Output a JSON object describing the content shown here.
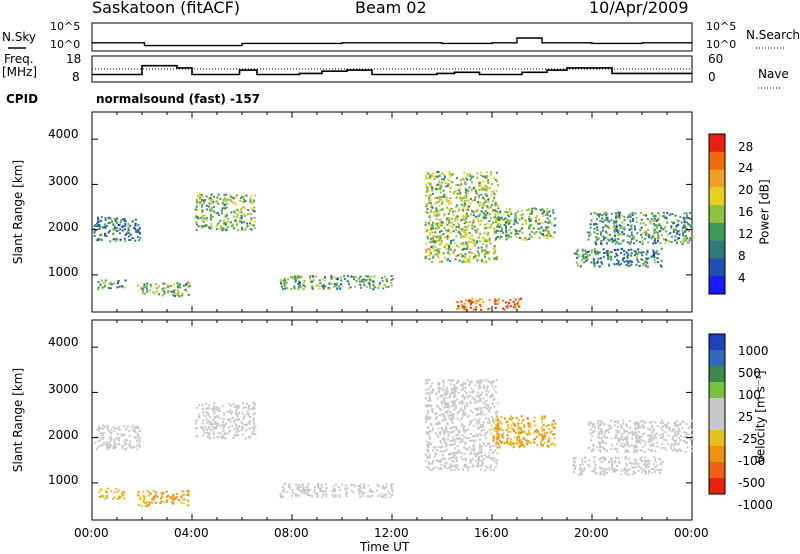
{
  "header": {
    "title": "Saskatoon (fitACF)",
    "beam": "Beam 02",
    "date": "10/Apr/2009"
  },
  "strip_panels": {
    "nsky_label": "N.Sky",
    "nsky_ticks": [
      "10^5",
      "10^0"
    ],
    "nsearch_label": "N.Search",
    "nsearch_ticks": [
      "10^5",
      "10^0"
    ],
    "freq_label_line1": "Freq.",
    "freq_label_line2": "[MHz]",
    "freq_ticks": [
      "18",
      "8"
    ],
    "nave_label": "Nave",
    "nave_ticks": [
      "60",
      "0"
    ],
    "cpid_label": "CPID",
    "cpid_value": "normalsound (fast) -157"
  },
  "axes": {
    "ylabel": "Slant Range [km]",
    "yticks": [
      "4000",
      "3000",
      "2000",
      "1000"
    ],
    "xlabel": "Time UT",
    "xticks": [
      "00:00",
      "04:00",
      "08:00",
      "12:00",
      "16:00",
      "20:00",
      "00:00"
    ]
  },
  "colorbars": {
    "power": {
      "label": "Power [dB]",
      "ticks": [
        "28",
        "24",
        "20",
        "16",
        "12",
        "8",
        "4"
      ],
      "colors": [
        "#1a1aff",
        "#1f4fb0",
        "#2f7a78",
        "#3f9a5a",
        "#8fc23a",
        "#e8d020",
        "#f0a020",
        "#f26a10",
        "#e62010"
      ]
    },
    "velocity": {
      "label": "Velocity [m s⁻¹]",
      "ticks": [
        "1000",
        "500",
        "100",
        "25",
        "-25",
        "-100",
        "-500",
        "-1000"
      ],
      "colors": [
        "#2040c0",
        "#306ab8",
        "#3a8a50",
        "#78c040",
        "#c8c8c8",
        "#c8c8c8",
        "#e8c020",
        "#f09010",
        "#f06010",
        "#e82010"
      ]
    }
  },
  "chart_data": [
    {
      "type": "line",
      "title": "N.Sky",
      "x_units": "hours UT",
      "xlim": [
        0,
        24
      ],
      "y_scale": "log",
      "ylim": [
        1,
        100000
      ],
      "x": [
        0,
        2,
        2.1,
        6,
        10,
        14,
        16,
        17,
        18,
        20,
        22,
        24
      ],
      "y": [
        20,
        20,
        5,
        15,
        20,
        15,
        20,
        200,
        20,
        15,
        20,
        20
      ]
    },
    {
      "type": "line",
      "title": "Freq. [MHz]",
      "x_units": "hours UT",
      "xlim": [
        0,
        24
      ],
      "ylim": [
        8,
        18
      ],
      "x": [
        0,
        1,
        1.9,
        2,
        2.7,
        3.4,
        4.0,
        5.7,
        5.9,
        6.6,
        7.5,
        8.3,
        9.2,
        10.2,
        11.2,
        12.2,
        13.0,
        13.8,
        14.5,
        15.5,
        16.0,
        17.2,
        18.2,
        19.0,
        20.8,
        22.0,
        23.0,
        24
      ],
      "y": [
        10.5,
        10.5,
        10.5,
        14.5,
        14.5,
        13.5,
        10.5,
        10.5,
        12.5,
        10.5,
        10.5,
        11,
        12,
        12.5,
        10.5,
        10.5,
        10.5,
        11,
        11.5,
        10.5,
        10.5,
        11.5,
        12.5,
        13.5,
        11,
        11,
        11,
        11
      ]
    },
    {
      "type": "heatmap",
      "title": "Power [dB]",
      "x_units": "hours UT",
      "xlim": [
        0,
        24
      ],
      "y_units": "Slant Range [km]",
      "ylim": [
        180,
        4600
      ],
      "z_range": [
        0,
        30
      ],
      "regions": [
        {
          "t0": 0.05,
          "t1": 1.9,
          "r0": 1750,
          "r1": 2300,
          "power": 9
        },
        {
          "t0": 0.2,
          "t1": 1.3,
          "r0": 700,
          "r1": 900,
          "power": 12
        },
        {
          "t0": 1.8,
          "t1": 3.9,
          "r0": 550,
          "r1": 850,
          "power": 13
        },
        {
          "t0": 4.1,
          "t1": 6.5,
          "r0": 2000,
          "r1": 2800,
          "power": 14
        },
        {
          "t0": 7.5,
          "t1": 12.0,
          "r0": 700,
          "r1": 1000,
          "power": 12
        },
        {
          "t0": 13.3,
          "t1": 16.2,
          "r0": 1300,
          "r1": 3300,
          "power": 15
        },
        {
          "t0": 16.0,
          "t1": 18.5,
          "r0": 1800,
          "r1": 2500,
          "power": 13
        },
        {
          "t0": 14.5,
          "t1": 17.2,
          "r0": 250,
          "r1": 500,
          "power": 25
        },
        {
          "t0": 19.2,
          "t1": 22.8,
          "r0": 1200,
          "r1": 1600,
          "power": 9
        },
        {
          "t0": 19.8,
          "t1": 24.0,
          "r0": 1700,
          "r1": 2400,
          "power": 11
        }
      ]
    },
    {
      "type": "heatmap",
      "title": "Velocity [m s-1]",
      "x_units": "hours UT",
      "xlim": [
        0,
        24
      ],
      "y_units": "Slant Range [km]",
      "ylim": [
        180,
        4600
      ],
      "z_range": [
        -1000,
        1000
      ],
      "regions": [
        {
          "t0": 0.05,
          "t1": 1.9,
          "r0": 1750,
          "r1": 2300,
          "velocity": 0
        },
        {
          "t0": 0.2,
          "t1": 1.3,
          "r0": 650,
          "r1": 900,
          "velocity": -300
        },
        {
          "t0": 1.8,
          "t1": 3.9,
          "r0": 500,
          "r1": 850,
          "velocity": -400
        },
        {
          "t0": 4.1,
          "t1": 6.5,
          "r0": 2000,
          "r1": 2800,
          "velocity": 0
        },
        {
          "t0": 7.5,
          "t1": 12.0,
          "r0": 700,
          "r1": 1000,
          "velocity": 0
        },
        {
          "t0": 13.3,
          "t1": 16.2,
          "r0": 1300,
          "r1": 3300,
          "velocity": -20
        },
        {
          "t0": 16.0,
          "t1": 18.5,
          "r0": 1800,
          "r1": 2500,
          "velocity": -400
        },
        {
          "t0": 19.2,
          "t1": 22.8,
          "r0": 1200,
          "r1": 1600,
          "velocity": 0
        },
        {
          "t0": 19.8,
          "t1": 24.0,
          "r0": 1700,
          "r1": 2400,
          "velocity": -10
        }
      ]
    }
  ]
}
